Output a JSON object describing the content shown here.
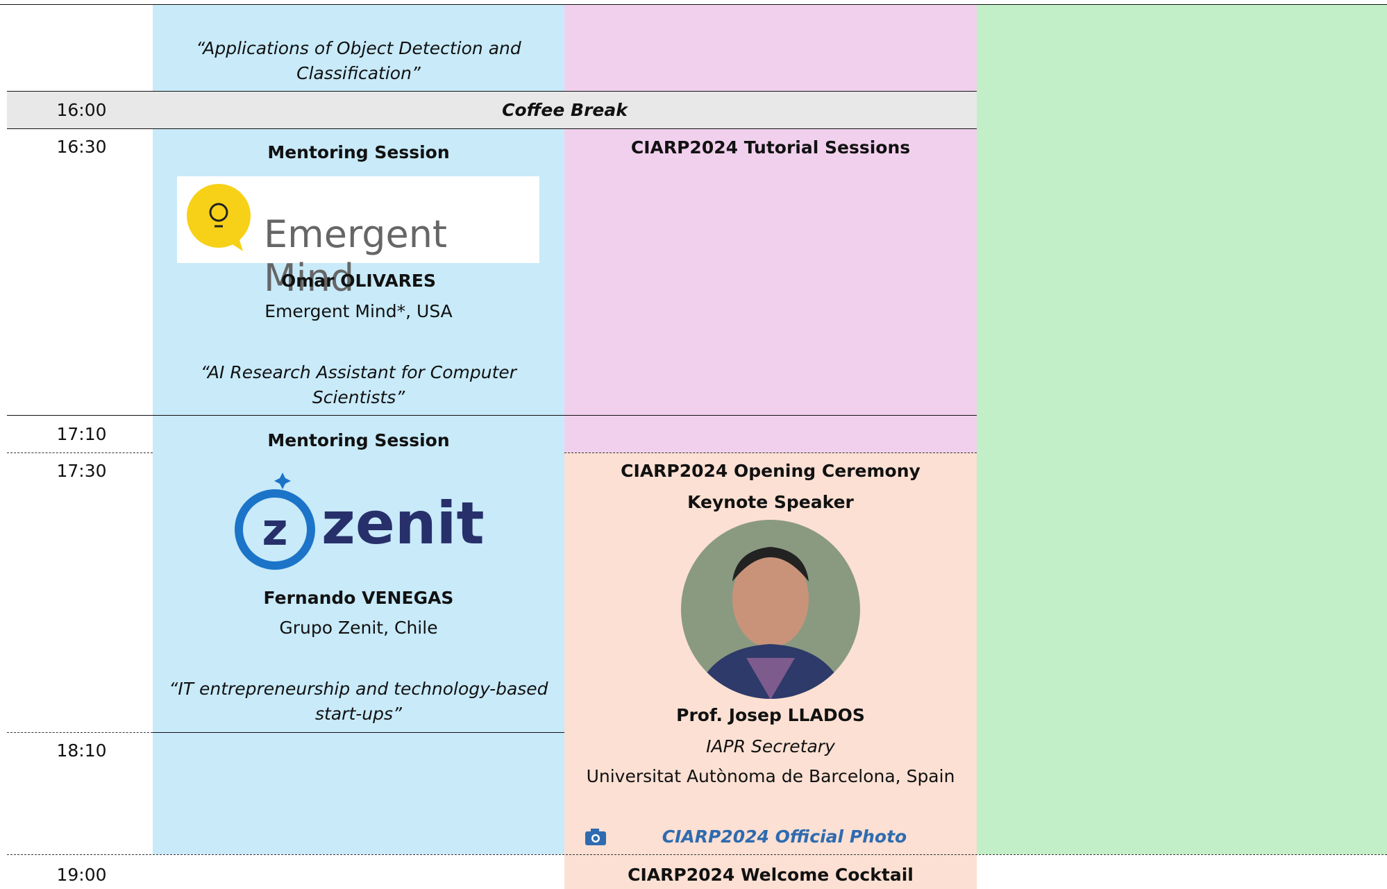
{
  "times": [
    "16:00",
    "16:30",
    "17:10",
    "17:30",
    "18:10",
    "19:00"
  ],
  "coffee_break": "Coffee Break",
  "track_a": {
    "previous_talk": "“Applications of Object Detection and Classification”",
    "sessions": [
      {
        "heading": "Mentoring Session",
        "logo_text": "Emergent Mind",
        "speaker": "Omar OLIVARES",
        "affiliation": "Emergent Mind*, USA",
        "talk": "“AI Research Assistant for Computer Scientists”"
      },
      {
        "heading": "Mentoring Session",
        "logo_text": "zenit",
        "speaker": "Fernando VENEGAS",
        "affiliation": "Grupo Zenit, Chile",
        "talk": "“IT entrepreneurship and technology-based start-ups”"
      }
    ]
  },
  "track_b": {
    "tutorial": "CIARP2024 Tutorial Sessions",
    "opening": "CIARP2024 Opening Ceremony",
    "keynote_label": "Keynote Speaker",
    "keynote_speaker": "Prof. Josep LLADOS",
    "keynote_role": "IAPR Secretary",
    "keynote_affiliation": "Universitat Autònoma de Barcelona, Spain",
    "photo_link": "CIARP2024 Official Photo",
    "cocktail": "CIARP2024 Welcome Cocktail"
  }
}
